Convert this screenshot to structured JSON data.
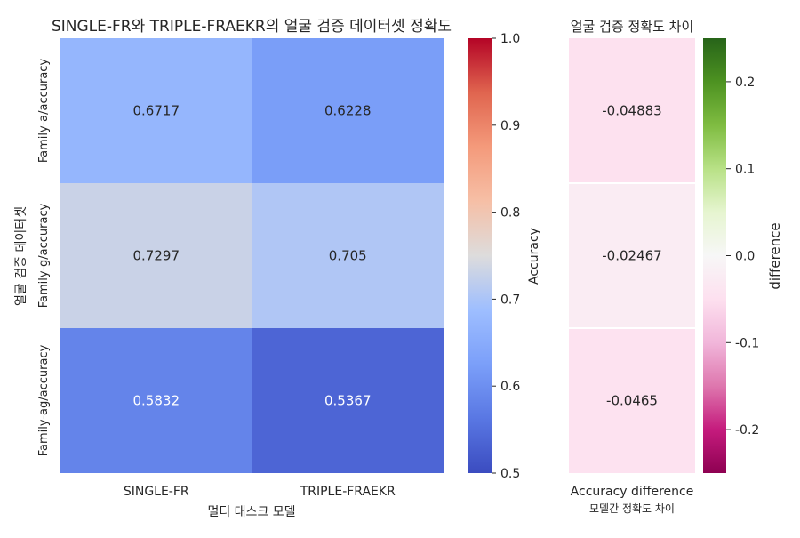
{
  "chart_data": [
    {
      "type": "heatmap",
      "title": "SINGLE-FR와 TRIPLE-FRAEKR의 얼굴 검증 데이터셋 정확도",
      "xlabel": "멀티 태스크 모델",
      "ylabel": "얼굴 검증 데이터셋",
      "columns": [
        "SINGLE-FR",
        "TRIPLE-FRAEKR"
      ],
      "rows": [
        "Family-a/accuracy",
        "Family-g/accuracy",
        "Family-ag/accuracy"
      ],
      "values": [
        [
          0.6717,
          0.6228
        ],
        [
          0.7297,
          0.705
        ],
        [
          0.5832,
          0.5367
        ]
      ],
      "value_labels": [
        [
          "0.6717",
          "0.6228"
        ],
        [
          "0.7297",
          "0.705"
        ],
        [
          "0.5832",
          "0.5367"
        ]
      ],
      "colormap": "coolwarm",
      "colorbar": {
        "label": "Accuracy",
        "range": [
          0.5,
          1.0
        ],
        "ticks": [
          0.5,
          0.6,
          0.7,
          0.8,
          0.9,
          1.0
        ],
        "tick_labels": [
          "0.5",
          "0.6",
          "0.7",
          "0.8",
          "0.9",
          "1.0"
        ]
      }
    },
    {
      "type": "heatmap",
      "title": "얼굴 검증 정확도 차이",
      "xlabel": "모델간 정확도 차이",
      "columns": [
        "Accuracy difference"
      ],
      "rows": [
        "Family-a/accuracy",
        "Family-g/accuracy",
        "Family-ag/accuracy"
      ],
      "values": [
        [
          -0.04883
        ],
        [
          -0.02467
        ],
        [
          -0.0465
        ]
      ],
      "value_labels": [
        [
          "-0.04883"
        ],
        [
          "-0.02467"
        ],
        [
          "-0.0465"
        ]
      ],
      "colormap": "PiYG",
      "colorbar": {
        "label": "difference",
        "range": [
          -0.25,
          0.25
        ],
        "ticks": [
          0.2,
          0.1,
          0.0,
          -0.1,
          -0.2
        ],
        "tick_labels": [
          "0.2",
          "0.1",
          "0.0",
          "-0.1",
          "-0.2"
        ]
      }
    }
  ]
}
